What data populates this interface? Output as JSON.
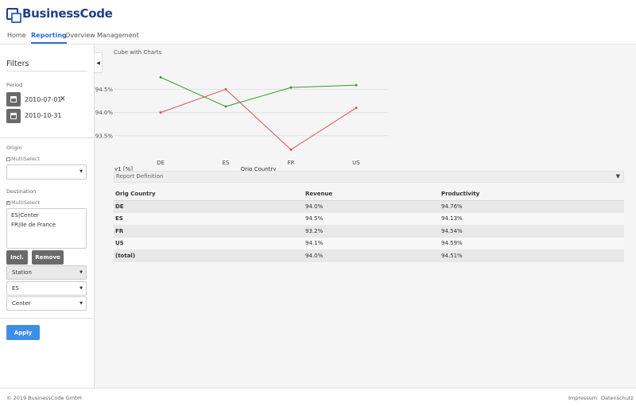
{
  "app": {
    "brand": "BusinessCode"
  },
  "nav": {
    "items": [
      "Home",
      "Reporting",
      "Overview",
      "Management"
    ],
    "active": "Reporting"
  },
  "sidebar": {
    "title": "Filters",
    "period": {
      "label": "Period",
      "from": "2010-07-01",
      "to": "2010-10-31"
    },
    "origin": {
      "label": "Origin",
      "multiselect_label": "MultiSelect",
      "multiselect_checked": false,
      "value": ""
    },
    "destination": {
      "label": "Destination",
      "multiselect_label": "MultiSelect",
      "multiselect_checked": true,
      "list": [
        "ES|Center",
        "FR|Ile de France"
      ],
      "incl_label": "Incl.",
      "remove_label": "Remove",
      "station_select": "Station",
      "country_select": "ES",
      "region_select": "Center"
    },
    "apply_label": "Apply"
  },
  "main": {
    "chart_title": "Cube with Charts",
    "report_definition_label": "Report Definition",
    "table": {
      "headers": [
        "Orig Country",
        "Revenue",
        "Productivity"
      ],
      "rows": [
        [
          "DE",
          "94.0%",
          "94.76%"
        ],
        [
          "ES",
          "94.5%",
          "94.13%"
        ],
        [
          "FR",
          "93.2%",
          "94.54%"
        ],
        [
          "US",
          "94.1%",
          "94.59%"
        ],
        [
          "(total)",
          "94.0%",
          "94.51%"
        ]
      ]
    }
  },
  "chart_data": {
    "type": "line",
    "categories": [
      "DE",
      "ES",
      "FR",
      "US"
    ],
    "xlabel": "Orig Country",
    "ylabel": "y1 [%]",
    "yticks": [
      "94.5%",
      "94.0%",
      "93.5%"
    ],
    "ytick_values": [
      94.5,
      94.0,
      93.5
    ],
    "ylim": [
      93.0,
      94.85
    ],
    "series": [
      {
        "values": [
          94.0,
          94.5,
          93.2,
          94.1
        ],
        "color": "#d9534f"
      },
      {
        "values": [
          94.76,
          94.13,
          94.54,
          94.59
        ],
        "color": "#3a9a3a"
      }
    ],
    "grid": true
  },
  "footer": {
    "copyright": "© 2019 BusinessCode GmbH",
    "links": [
      "Impressum",
      "Datenschutz"
    ]
  }
}
